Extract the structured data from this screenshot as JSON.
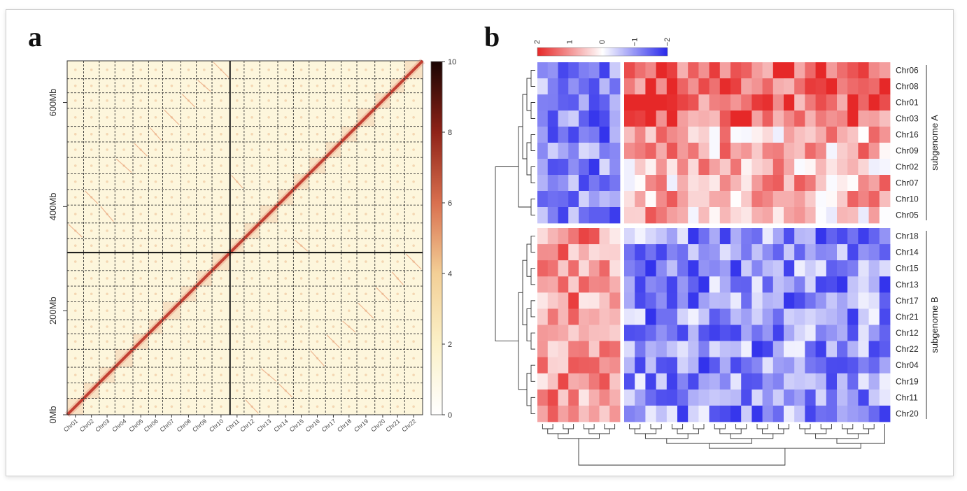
{
  "panel_a": {
    "letter": "a",
    "chart_data": {
      "type": "heatmap",
      "y_ticks": [
        "0Mb",
        "200Mb",
        "400Mb",
        "600Mb"
      ],
      "y_tick_values_mb": [
        0,
        200,
        400,
        600
      ],
      "y_max_mb": 680,
      "x_labels": [
        "Chr01",
        "Chr02",
        "Chr03",
        "Chr04",
        "Chr05",
        "Chr06",
        "Chr07",
        "Chr08",
        "Chr09",
        "Chr10",
        "Chr11",
        "Chr12",
        "Chr13",
        "Chr14",
        "Chr15",
        "Chr16",
        "Chr17",
        "Chr18",
        "Chr19",
        "Chr20",
        "Chr21",
        "Chr22"
      ],
      "colorbar_ticks": [
        "0",
        "2",
        "4",
        "6",
        "8",
        "10"
      ],
      "colorbar_range": [
        0,
        10
      ]
    }
  },
  "panel_b": {
    "letter": "b",
    "chart_data": {
      "type": "heatmap",
      "colorbar_ticks": [
        "2",
        "1",
        "0",
        "−1",
        "−2"
      ],
      "colorbar_range": [
        2,
        -2
      ],
      "row_labels": [
        "Chr06",
        "Chr08",
        "Chr01",
        "Chr03",
        "Chr16",
        "Chr09",
        "Chr02",
        "Chr07",
        "Chr10",
        "Chr05",
        "Chr18",
        "Chr14",
        "Chr15",
        "Chr13",
        "Chr17",
        "Chr21",
        "Chr12",
        "Chr22",
        "Chr04",
        "Chr19",
        "Chr11",
        "Chr20"
      ],
      "groups": [
        {
          "label": "subgenome A",
          "rows": 10
        },
        {
          "label": "subgenome B",
          "rows": 12
        }
      ],
      "left_block_columns": 8,
      "right_block_columns": 25,
      "pattern": {
        "subgenome_A_left": "blue",
        "subgenome_A_right": "red",
        "subgenome_B_left": "red",
        "subgenome_B_right": "blue"
      }
    }
  }
}
